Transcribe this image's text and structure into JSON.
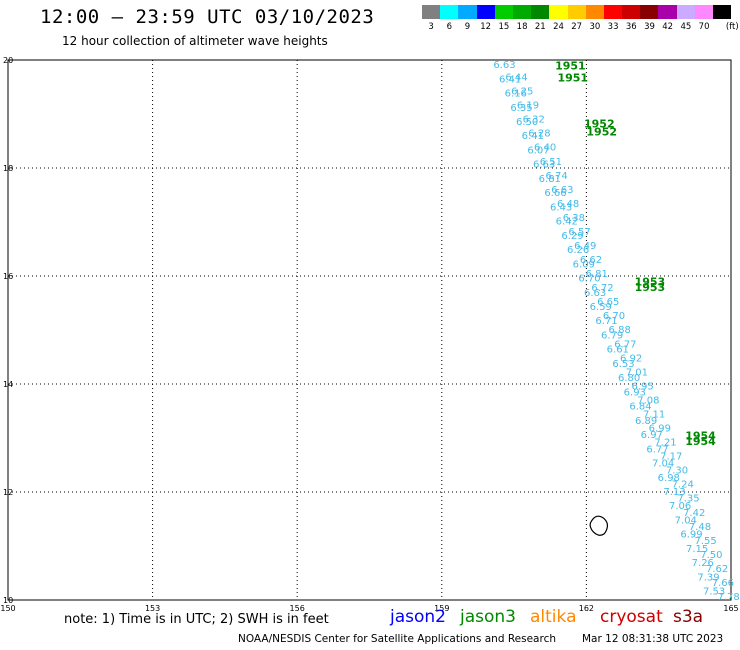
{
  "header": {
    "title": "12:00 – 23:59 UTC 03/10/2023",
    "subtitle": "12 hour collection of altimeter wave heights"
  },
  "legend": {
    "colors": [
      "#808080",
      "#00ffff",
      "#00aaff",
      "#0000ff",
      "#00cc00",
      "#00aa00",
      "#008800",
      "#ffff00",
      "#ffcc00",
      "#ff8800",
      "#ff0000",
      "#cc0000",
      "#880000",
      "#aa00aa",
      "#ccaaff",
      "#ff88ff",
      "#000000"
    ],
    "labels": [
      "3",
      "6",
      "9",
      "12",
      "15",
      "18",
      "21",
      "24",
      "27",
      "30",
      "33",
      "36",
      "39",
      "42",
      "45",
      "70",
      "(ft)"
    ]
  },
  "map": {
    "lon_ticks": [
      "150",
      "153",
      "156",
      "159",
      "162",
      "165"
    ],
    "lat_ticks": [
      "20",
      "18",
      "16",
      "14",
      "12",
      "10"
    ],
    "lon_range": [
      150,
      165
    ],
    "lat_range": [
      10,
      20
    ],
    "grid": true,
    "swh_color": "#44bbe8",
    "track_a": {
      "swh_labels": [
        "6.63",
        "6.41",
        "6.16",
        "6.35",
        "6.50",
        "6.41",
        "6.07",
        "6.63",
        "6.81",
        "6.66",
        "6.43",
        "6.42",
        "6.29",
        "6.26",
        "6.09",
        "6.70",
        "6.63",
        "6.59",
        "6.71",
        "6.79",
        "6.61",
        "6.53",
        "6.80",
        "6.93",
        "6.84",
        "6.89",
        "6.97",
        "6.77",
        "7.04",
        "6.98",
        "7.13",
        "7.06",
        "7.04",
        "6.99",
        "7.15",
        "7.26",
        "7.39",
        "7.53"
      ],
      "start": {
        "lon": 160.3,
        "lat": 19.85
      },
      "end": {
        "lon": 164.65,
        "lat": 10.1
      }
    },
    "track_b": {
      "swh_labels": [
        "6.44",
        "6.25",
        "6.19",
        "6.32",
        "6.28",
        "6.40",
        "6.51",
        "6.74",
        "6.63",
        "6.48",
        "6.38",
        "6.57",
        "6.49",
        "6.62",
        "6.81",
        "6.72",
        "6.65",
        "6.70",
        "6.88",
        "6.77",
        "6.92",
        "7.01",
        "6.95",
        "7.08",
        "7.11",
        "6.99",
        "7.21",
        "7.17",
        "7.30",
        "7.24",
        "7.35",
        "7.42",
        "7.48",
        "7.55",
        "7.50",
        "7.62",
        "7.66",
        "7.78"
      ],
      "start": {
        "lon": 160.55,
        "lat": 19.62
      },
      "end": {
        "lon": 164.95,
        "lat": 10.0
      }
    },
    "time_labels": [
      {
        "text": "1951",
        "lon": 161.35,
        "lat": 19.82,
        "color": "#008800"
      },
      {
        "text": "1951",
        "lon": 161.4,
        "lat": 19.6,
        "color": "#008800"
      },
      {
        "text": "1952",
        "lon": 161.95,
        "lat": 18.75,
        "color": "#008800"
      },
      {
        "text": "1952",
        "lon": 162.0,
        "lat": 18.6,
        "color": "#008800"
      },
      {
        "text": "1953",
        "lon": 163.0,
        "lat": 15.82,
        "color": "#008800"
      },
      {
        "text": "1953",
        "lon": 163.0,
        "lat": 15.72,
        "color": "#008800"
      },
      {
        "text": "1954",
        "lon": 164.05,
        "lat": 12.97,
        "color": "#008800"
      },
      {
        "text": "1954",
        "lon": 164.05,
        "lat": 12.87,
        "color": "#008800"
      }
    ],
    "island": {
      "lon": 162.25,
      "lat": 11.35
    }
  },
  "footer": {
    "note": "note: 1) Time is in UTC; 2) SWH is in feet",
    "satellites": [
      {
        "name": "jason2",
        "color": "#0000ff"
      },
      {
        "name": "jason3",
        "color": "#008800"
      },
      {
        "name": "altika",
        "color": "#ff8800"
      },
      {
        "name": "cryosat",
        "color": "#cc0000"
      },
      {
        "name": "s3a",
        "color": "#880000"
      }
    ],
    "credit": "NOAA/NESDIS Center for Satellite Applications and Research",
    "timestamp": "Mar 12 08:31:38 UTC 2023"
  }
}
